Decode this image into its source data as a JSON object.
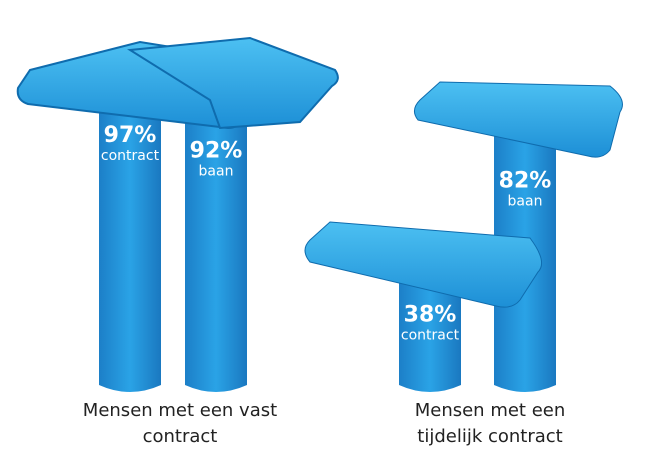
{
  "chart_data": {
    "type": "bar",
    "categories": [
      "Mensen met een vast contract",
      "Mensen met een tijdelijk contract"
    ],
    "series": [
      {
        "name": "contract",
        "color": "#1e8fd8",
        "values": [
          97,
          38
        ],
        "value_labels": [
          "97%",
          "38%"
        ]
      },
      {
        "name": "baan",
        "color": "#1e8fd8",
        "values": [
          92,
          82
        ],
        "value_labels": [
          "92%",
          "82%"
        ]
      }
    ]
  }
}
